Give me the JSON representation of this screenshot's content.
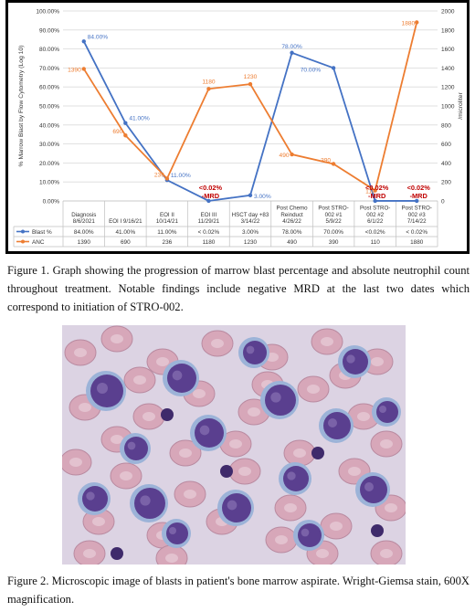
{
  "chart_data": {
    "type": "line",
    "title": "",
    "ylabel": "% Marrow Blast by Flow Cytometry (Log 10)",
    "y2label": "/microliter",
    "ylim": [
      0,
      100
    ],
    "y2lim": [
      0,
      2000
    ],
    "yticks": [
      "0.00%",
      "10.00%",
      "20.00%",
      "30.00%",
      "40.00%",
      "50.00%",
      "60.00%",
      "70.00%",
      "80.00%",
      "90.00%",
      "100.00%"
    ],
    "y2ticks": [
      "0",
      "200",
      "400",
      "600",
      "800",
      "1000",
      "1200",
      "1400",
      "1600",
      "1800",
      "2000"
    ],
    "categories": [
      [
        "Diagnosis",
        "8/6/2021"
      ],
      [
        "EOI I 9/16/21"
      ],
      [
        "EOI II",
        "10/14/21"
      ],
      [
        "EOI III",
        "11/29/21"
      ],
      [
        "HSCT day +83",
        "3/14/22"
      ],
      [
        "Post Chemo",
        "Reinduct",
        "4/26/22"
      ],
      [
        "Post STRO-",
        "002 #1",
        "5/9/22"
      ],
      [
        "Post STRO-",
        "002 #2",
        "6/1/22"
      ],
      [
        "Post STRO-",
        "002 #3",
        "7/14/22"
      ]
    ],
    "grid": true,
    "series": [
      {
        "name": "Blast %",
        "axis": "left",
        "color": "#4472c4",
        "values": [
          84,
          41,
          11,
          0.02,
          3,
          78,
          70,
          0.02,
          0.02
        ],
        "point_labels": [
          "84.00%",
          "41.00%",
          "11.00%",
          "",
          "3.00%",
          "78.00%",
          "70.00%",
          "",
          ""
        ],
        "table_values": [
          "84.00%",
          "41.00%",
          "11.00%",
          "< 0.02%",
          "3.00%",
          "78.00%",
          "70.00%",
          "<0.02%",
          "< 0.02%"
        ]
      },
      {
        "name": "ANC",
        "axis": "right",
        "color": "#ed7d31",
        "values": [
          1390,
          690,
          236,
          1180,
          1230,
          490,
          390,
          110,
          1880
        ],
        "point_labels": [
          "1390",
          "690",
          "236",
          "1180",
          "1230",
          "490",
          "390",
          "110",
          "1880"
        ],
        "table_values": [
          "1390",
          "690",
          "236",
          "1180",
          "1230",
          "490",
          "390",
          "110",
          "1880"
        ]
      }
    ],
    "annotations": [
      {
        "category_index": 3,
        "lines": [
          "<0.02%",
          "-MRD"
        ],
        "color": "#c00000"
      },
      {
        "category_index": 7,
        "lines": [
          "<0.02%",
          "-MRD"
        ],
        "color": "#c00000"
      },
      {
        "category_index": 8,
        "lines": [
          "<0.02%",
          "-MRD"
        ],
        "color": "#c00000"
      }
    ]
  },
  "figure1_caption": "Figure 1. Graph showing the progression of marrow blast percentage and absolute neutrophil count throughout treatment. Notable findings include negative MRD at the last two dates which correspond to initiation of STRO-002.",
  "figure2_caption": "Figure 2. Microscopic image of blasts in patient's bone marrow aspirate. Wright-Giemsa stain, 600X magnification.",
  "colors": {
    "blast": "#4472c4",
    "anc": "#ed7d31",
    "mrd": "#c00000",
    "grid": "#d9d9d9"
  }
}
